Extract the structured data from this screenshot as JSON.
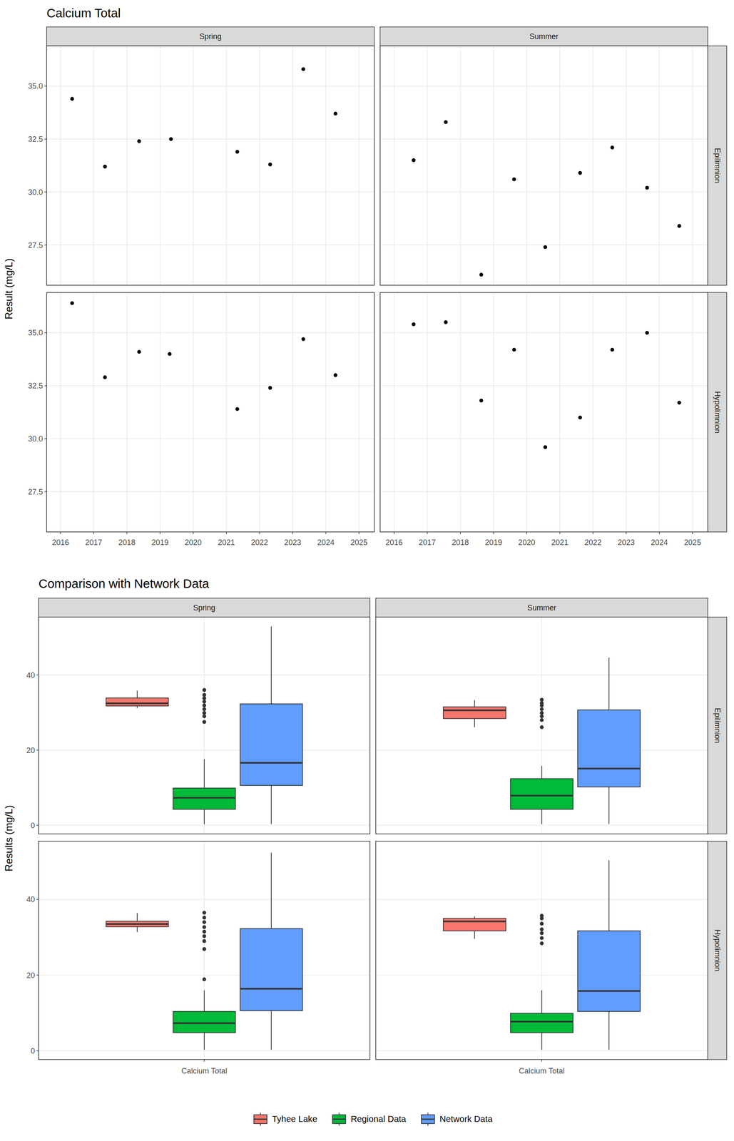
{
  "chart_data": [
    {
      "type": "scatter",
      "title": "Calcium Total",
      "y_label": "Result (mg/L)",
      "color": "#000000",
      "marker": "circle",
      "grid": true,
      "xlim": [
        2015.58,
        2025.46
      ],
      "xticks": [
        2016,
        2017,
        2018,
        2019,
        2020,
        2021,
        2022,
        2023,
        2024,
        2025
      ],
      "ylim": [
        25.6,
        36.9
      ],
      "yticks": [
        27.5,
        {
          "value": 30,
          "label": "30.0"
        },
        32.5,
        {
          "value": 35,
          "label": "35.0"
        }
      ],
      "facets": {
        "cols": [
          "Spring",
          "Summer"
        ],
        "rows": [
          "Epilimnion",
          "Hypolimnion"
        ]
      },
      "panels": [
        [
          {
            "x": [
              2016.35,
              2017.34,
              2018.37,
              2019.33,
              2021.33,
              2022.32,
              2023.32,
              2024.29
            ],
            "values": [
              34.4,
              31.2,
              32.4,
              32.5,
              31.9,
              31.3,
              35.8,
              33.7
            ]
          },
          {
            "x": [
              2016.59,
              2017.56,
              2018.63,
              2019.62,
              2020.56,
              2021.61,
              2022.58,
              2023.63,
              2024.6
            ],
            "values": [
              31.5,
              33.3,
              26.1,
              30.6,
              27.4,
              30.9,
              32.1,
              30.2,
              28.4
            ]
          }
        ],
        [
          {
            "x": [
              2016.35,
              2017.34,
              2018.37,
              2019.29,
              2021.33,
              2022.32,
              2023.32,
              2024.29
            ],
            "values": [
              36.4,
              32.9,
              34.1,
              34.0,
              31.4,
              32.4,
              34.7,
              33.0
            ]
          },
          {
            "x": [
              2016.59,
              2017.56,
              2018.63,
              2019.62,
              2020.56,
              2021.61,
              2022.58,
              2023.63,
              2024.6
            ],
            "values": [
              35.4,
              35.5,
              31.8,
              34.2,
              29.6,
              31.0,
              34.2,
              35.0,
              31.7
            ]
          }
        ]
      ]
    },
    {
      "type": "box",
      "title": "Comparison with Network Data",
      "y_label": "Results (mg/L)",
      "categories": [
        "Calcium Total"
      ],
      "grid": true,
      "legend": "bottom",
      "ylim": [
        -2.3,
        55.4
      ],
      "yticks": [
        0,
        20,
        40
      ],
      "facets": {
        "cols": [
          "Spring",
          "Summer"
        ],
        "rows": [
          "Epilimnion",
          "Hypolimnion"
        ]
      },
      "series": [
        {
          "name": "Tyhee Lake",
          "color": "#F8766D"
        },
        {
          "name": "Regional Data",
          "color": "#00BA38"
        },
        {
          "name": "Network Data",
          "color": "#619CFF"
        }
      ],
      "panels": [
        [
          [
            {
              "min": 31.2,
              "q1": 31.75,
              "median": 32.45,
              "q3": 33.88,
              "max": 35.8,
              "outliers": []
            },
            {
              "min": 0.3,
              "q1": 4.25,
              "median": 7.3,
              "q3": 9.9,
              "max": 17.6,
              "outliers": [
                36.0,
                34.7,
                33.8,
                32.9,
                31.9,
                30.9,
                29.9,
                29.0,
                27.5
              ]
            },
            {
              "min": 0.3,
              "q1": 10.6,
              "median": 16.6,
              "q3": 32.3,
              "max": 52.9,
              "outliers": []
            }
          ],
          [
            {
              "min": 26.1,
              "q1": 28.4,
              "median": 30.6,
              "q3": 31.5,
              "max": 33.3,
              "outliers": []
            },
            {
              "min": 0.3,
              "q1": 4.25,
              "median": 7.9,
              "q3": 12.4,
              "max": 15.8,
              "outliers": [
                33.4,
                32.5,
                31.9,
                30.9,
                29.9,
                29.0,
                28.0,
                26.1
              ]
            },
            {
              "min": 0.3,
              "q1": 10.2,
              "median": 15.1,
              "q3": 30.7,
              "max": 44.6,
              "outliers": []
            }
          ]
        ],
        [
          [
            {
              "min": 31.4,
              "q1": 32.78,
              "median": 33.5,
              "q3": 34.25,
              "max": 36.4,
              "outliers": []
            },
            {
              "min": 0.3,
              "q1": 4.8,
              "median": 7.3,
              "q3": 10.4,
              "max": 16.0,
              "outliers": [
                36.5,
                35.2,
                34.0,
                32.7,
                31.5,
                30.3,
                29.0,
                26.9,
                18.9
              ]
            },
            {
              "min": 0.3,
              "q1": 10.6,
              "median": 16.4,
              "q3": 32.3,
              "max": 52.4,
              "outliers": []
            }
          ],
          [
            {
              "min": 29.6,
              "q1": 31.7,
              "median": 34.2,
              "q3": 35.0,
              "max": 35.5,
              "outliers": []
            },
            {
              "min": 0.3,
              "q1": 4.8,
              "median": 7.7,
              "q3": 9.9,
              "max": 16.0,
              "outliers": [
                35.7,
                35.0,
                33.6,
                32.1,
                31.1,
                29.8,
                28.4
              ]
            },
            {
              "min": 0.3,
              "q1": 10.4,
              "median": 15.8,
              "q3": 31.7,
              "max": 50.4,
              "outliers": []
            }
          ]
        ]
      ]
    }
  ]
}
